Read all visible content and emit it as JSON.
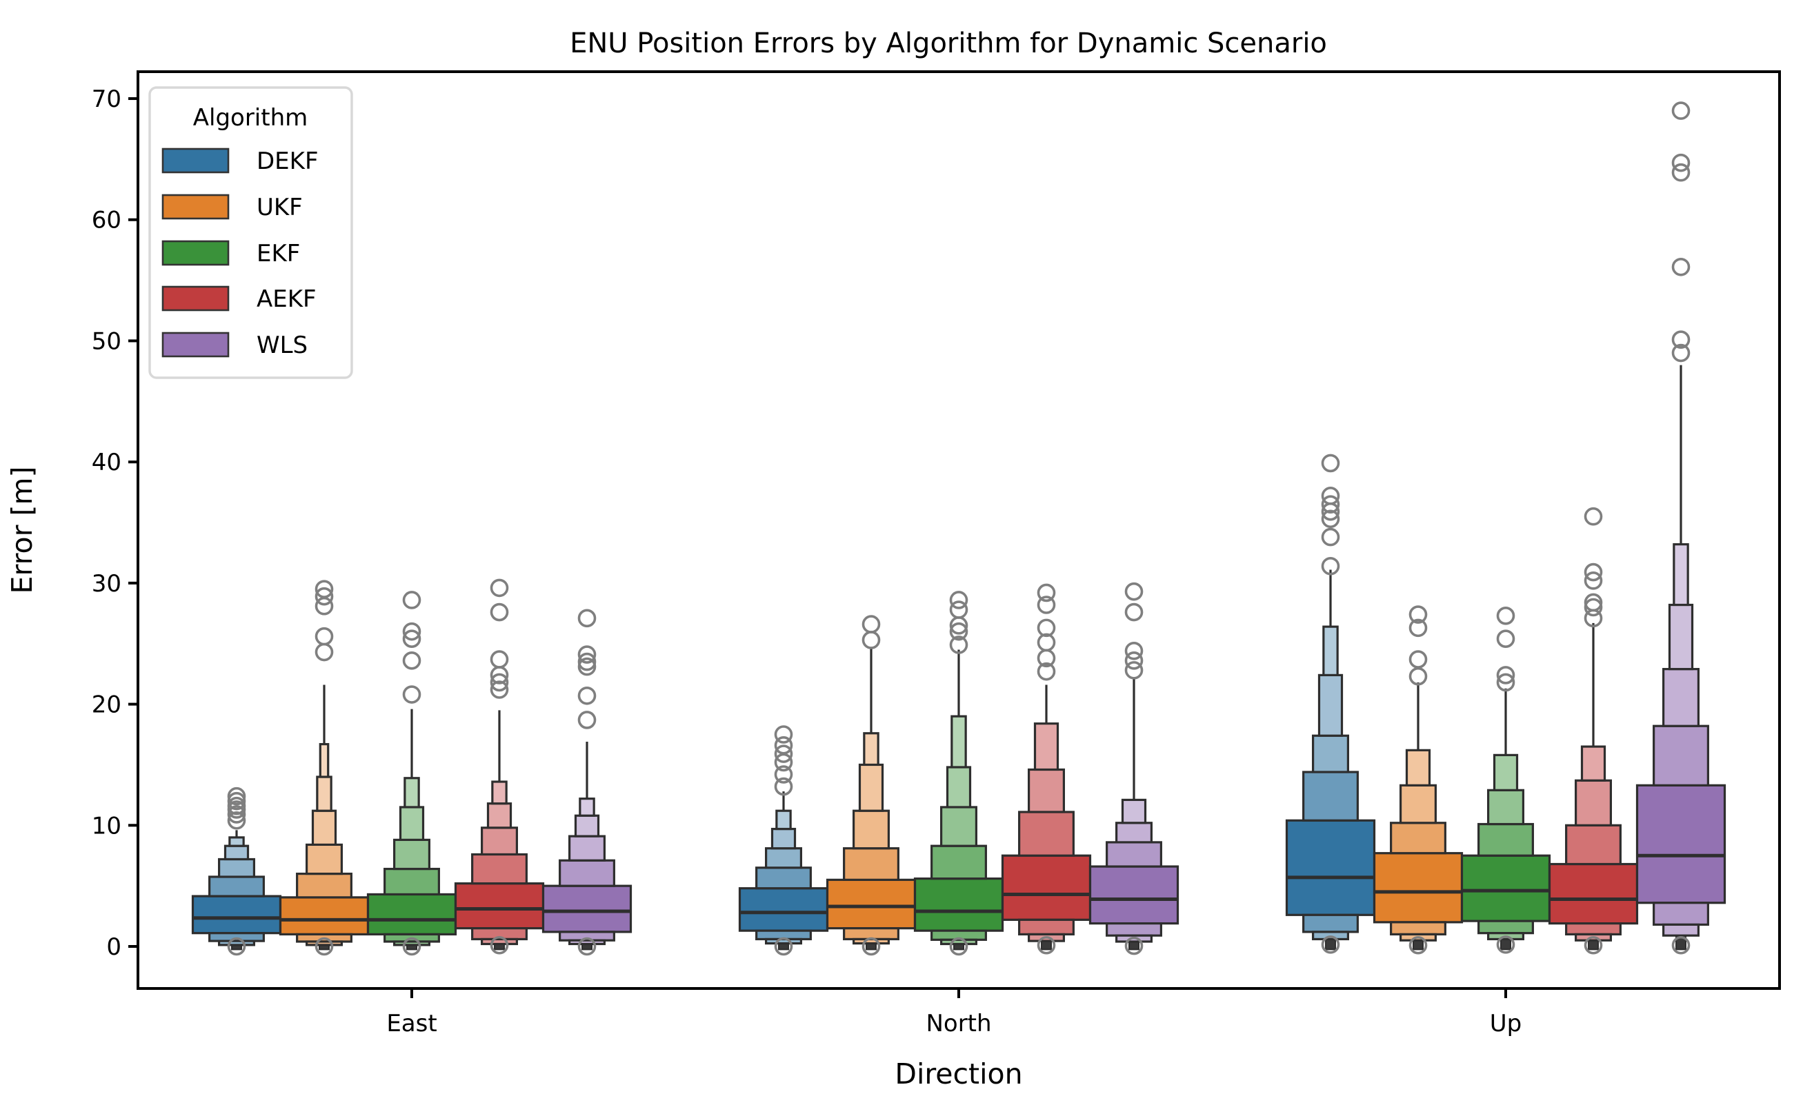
{
  "title": "ENU Position Errors by Algorithm for Dynamic Scenario",
  "legend": {
    "title": "Algorithm",
    "entries": [
      {
        "label": "DEKF",
        "color": "#3274a1"
      },
      {
        "label": "UKF",
        "color": "#e1812c"
      },
      {
        "label": "EKF",
        "color": "#3a923a"
      },
      {
        "label": "AEKF",
        "color": "#c03d3e"
      },
      {
        "label": "WLS",
        "color": "#9372b2"
      }
    ]
  },
  "colors": {
    "box_edge": "#2e2e2e",
    "outlier": "#7f7f7f",
    "spine": "#000000",
    "legend_border": "#d8d8d8",
    "stub": "#3a3a3a"
  },
  "chart_data": {
    "type": "boxen",
    "title": "ENU Position Errors by Algorithm for Dynamic Scenario",
    "xlabel": "Direction",
    "ylabel": "Error [m]",
    "categories": [
      "East",
      "North",
      "Up"
    ],
    "yticks": [
      0,
      10,
      20,
      30,
      40,
      50,
      60,
      70
    ],
    "ylim": [
      -3.5,
      72.2
    ],
    "legend_position": "upper left",
    "grid": false,
    "level_width_fractions": [
      1.0,
      0.62,
      0.4,
      0.26,
      0.16,
      0.09
    ],
    "series": [
      {
        "name": "DEKF",
        "color": "#3274a1",
        "boxens": [
          {
            "direction": "East",
            "median": 2.35,
            "boxes": [
              [
                1.1,
                4.15,
                0
              ],
              [
                4.15,
                5.75,
                1
              ],
              [
                0.45,
                1.1,
                1
              ],
              [
                5.75,
                7.2,
                2
              ],
              [
                0.12,
                0.45,
                2
              ],
              [
                7.2,
                8.3,
                3
              ],
              [
                8.3,
                9.0,
                4
              ]
            ],
            "whisker_top": 9.6,
            "outliers_top": [
              10.4,
              10.9,
              11.3,
              11.6,
              12.0,
              12.4
            ],
            "outliers_bottom": [
              0.0
            ]
          },
          {
            "direction": "North",
            "median": 2.8,
            "boxes": [
              [
                1.3,
                4.8,
                0
              ],
              [
                4.8,
                6.5,
                1
              ],
              [
                0.6,
                1.3,
                1
              ],
              [
                6.5,
                8.1,
                2
              ],
              [
                0.25,
                0.6,
                2
              ],
              [
                8.1,
                9.7,
                3
              ],
              [
                9.7,
                11.2,
                4
              ]
            ],
            "whisker_top": 12.8,
            "outliers_top": [
              13.2,
              14.2,
              15.2,
              15.9,
              16.6,
              17.5
            ],
            "outliers_bottom": [
              0.0
            ]
          },
          {
            "direction": "Up",
            "median": 5.7,
            "boxes": [
              [
                2.6,
                10.4,
                0
              ],
              [
                10.4,
                14.4,
                1
              ],
              [
                1.2,
                2.6,
                1
              ],
              [
                14.4,
                17.4,
                2
              ],
              [
                0.6,
                1.2,
                2
              ],
              [
                17.4,
                22.4,
                3
              ],
              [
                22.4,
                26.4,
                4
              ]
            ],
            "whisker_top": 31.1,
            "outliers_top": [
              31.4,
              33.8,
              35.3,
              35.9,
              36.5,
              37.2,
              39.9
            ],
            "outliers_bottom": [
              0.15
            ]
          }
        ]
      },
      {
        "name": "UKF",
        "color": "#e1812c",
        "boxens": [
          {
            "direction": "East",
            "median": 2.2,
            "boxes": [
              [
                1.0,
                4.05,
                0
              ],
              [
                4.05,
                6.0,
                1
              ],
              [
                0.4,
                1.0,
                1
              ],
              [
                6.0,
                8.4,
                2
              ],
              [
                0.12,
                0.4,
                2
              ],
              [
                8.4,
                11.2,
                3
              ],
              [
                11.2,
                14.0,
                4
              ],
              [
                14.0,
                16.7,
                5
              ]
            ],
            "whisker_top": 21.6,
            "outliers_top": [
              24.3,
              25.6,
              28.1,
              28.9,
              29.5
            ],
            "outliers_bottom": [
              0.0
            ]
          },
          {
            "direction": "North",
            "median": 3.3,
            "boxes": [
              [
                1.5,
                5.5,
                0
              ],
              [
                5.5,
                8.1,
                1
              ],
              [
                0.6,
                1.5,
                1
              ],
              [
                8.1,
                11.2,
                2
              ],
              [
                0.25,
                0.6,
                2
              ],
              [
                11.2,
                15.0,
                3
              ],
              [
                15.0,
                17.6,
                4
              ]
            ],
            "whisker_top": 24.6,
            "outliers_top": [
              25.3,
              26.6
            ],
            "outliers_bottom": [
              0.0
            ]
          },
          {
            "direction": "Up",
            "median": 4.5,
            "boxes": [
              [
                2.0,
                7.7,
                0
              ],
              [
                7.7,
                10.2,
                1
              ],
              [
                1.0,
                2.0,
                1
              ],
              [
                10.2,
                13.3,
                2
              ],
              [
                0.5,
                1.0,
                2
              ],
              [
                13.3,
                16.2,
                3
              ]
            ],
            "whisker_top": 21.8,
            "outliers_top": [
              22.3,
              23.7,
              26.3,
              27.4
            ],
            "outliers_bottom": [
              0.1
            ]
          }
        ]
      },
      {
        "name": "EKF",
        "color": "#3a923a",
        "boxens": [
          {
            "direction": "East",
            "median": 2.2,
            "boxes": [
              [
                1.0,
                4.3,
                0
              ],
              [
                4.3,
                6.4,
                1
              ],
              [
                0.4,
                1.0,
                1
              ],
              [
                6.4,
                8.8,
                2
              ],
              [
                0.12,
                0.4,
                2
              ],
              [
                8.8,
                11.5,
                3
              ],
              [
                11.5,
                13.9,
                4
              ]
            ],
            "whisker_top": 19.6,
            "outliers_top": [
              20.8,
              23.6,
              25.4,
              26.0,
              28.6
            ],
            "outliers_bottom": [
              0.0
            ]
          },
          {
            "direction": "North",
            "median": 2.9,
            "boxes": [
              [
                1.3,
                5.6,
                0
              ],
              [
                5.6,
                8.3,
                1
              ],
              [
                0.55,
                1.3,
                1
              ],
              [
                8.3,
                11.5,
                2
              ],
              [
                0.2,
                0.55,
                2
              ],
              [
                11.5,
                14.8,
                3
              ],
              [
                14.8,
                19.0,
                4
              ]
            ],
            "whisker_top": 24.5,
            "outliers_top": [
              24.9,
              26.0,
              26.5,
              27.8,
              28.6
            ],
            "outliers_bottom": [
              0.0
            ]
          },
          {
            "direction": "Up",
            "median": 4.6,
            "boxes": [
              [
                2.1,
                7.5,
                0
              ],
              [
                7.5,
                10.1,
                1
              ],
              [
                1.1,
                2.1,
                1
              ],
              [
                10.1,
                12.9,
                2
              ],
              [
                0.6,
                1.1,
                2
              ],
              [
                12.9,
                15.8,
                3
              ]
            ],
            "whisker_top": 21.3,
            "outliers_top": [
              21.8,
              22.4,
              25.4,
              27.3
            ],
            "outliers_bottom": [
              0.15
            ]
          }
        ]
      },
      {
        "name": "AEKF",
        "color": "#c03d3e",
        "boxens": [
          {
            "direction": "East",
            "median": 3.1,
            "boxes": [
              [
                1.5,
                5.2,
                0
              ],
              [
                5.2,
                7.6,
                1
              ],
              [
                0.6,
                1.5,
                1
              ],
              [
                7.6,
                9.8,
                2
              ],
              [
                0.2,
                0.6,
                2
              ],
              [
                9.8,
                11.8,
                3
              ],
              [
                11.8,
                13.6,
                4
              ]
            ],
            "whisker_top": 19.5,
            "outliers_top": [
              21.2,
              21.8,
              22.4,
              23.7,
              27.6,
              29.6
            ],
            "outliers_bottom": [
              0.1
            ]
          },
          {
            "direction": "North",
            "median": 4.3,
            "boxes": [
              [
                2.2,
                7.5,
                0
              ],
              [
                7.5,
                11.1,
                1
              ],
              [
                1.0,
                2.2,
                1
              ],
              [
                11.1,
                14.6,
                2
              ],
              [
                0.45,
                1.0,
                2
              ],
              [
                14.6,
                18.4,
                3
              ]
            ],
            "whisker_top": 21.6,
            "outliers_top": [
              22.7,
              23.8,
              25.1,
              26.3,
              28.2,
              29.2
            ],
            "outliers_bottom": [
              0.1
            ]
          },
          {
            "direction": "Up",
            "median": 3.9,
            "boxes": [
              [
                1.9,
                6.8,
                0
              ],
              [
                6.8,
                10.0,
                1
              ],
              [
                1.0,
                1.9,
                1
              ],
              [
                10.0,
                13.7,
                2
              ],
              [
                0.5,
                1.0,
                2
              ],
              [
                13.7,
                16.5,
                3
              ]
            ],
            "whisker_top": 26.7,
            "outliers_top": [
              27.1,
              28.0,
              28.4,
              30.2,
              30.9,
              35.5
            ],
            "outliers_bottom": [
              0.1
            ]
          }
        ]
      },
      {
        "name": "WLS",
        "color": "#9372b2",
        "boxens": [
          {
            "direction": "East",
            "median": 2.9,
            "boxes": [
              [
                1.2,
                5.0,
                0
              ],
              [
                5.0,
                7.1,
                1
              ],
              [
                0.5,
                1.2,
                1
              ],
              [
                7.1,
                9.1,
                2
              ],
              [
                0.2,
                0.5,
                2
              ],
              [
                9.1,
                10.8,
                3
              ],
              [
                10.8,
                12.2,
                4
              ]
            ],
            "whisker_top": 16.9,
            "outliers_top": [
              18.7,
              20.7,
              23.1,
              23.5,
              24.1,
              27.1
            ],
            "outliers_bottom": [
              0.0
            ]
          },
          {
            "direction": "North",
            "median": 3.9,
            "boxes": [
              [
                1.9,
                6.6,
                0
              ],
              [
                6.6,
                8.6,
                1
              ],
              [
                0.9,
                1.9,
                1
              ],
              [
                8.6,
                10.2,
                2
              ],
              [
                0.4,
                0.9,
                2
              ],
              [
                10.2,
                12.1,
                3
              ]
            ],
            "whisker_top": 22.2,
            "outliers_top": [
              22.8,
              23.6,
              24.4,
              27.6,
              29.3
            ],
            "outliers_bottom": [
              0.05
            ]
          },
          {
            "direction": "Up",
            "median": 7.5,
            "boxes": [
              [
                3.6,
                13.3,
                0
              ],
              [
                13.3,
                18.2,
                1
              ],
              [
                1.8,
                3.6,
                1
              ],
              [
                18.2,
                22.9,
                2
              ],
              [
                0.9,
                1.8,
                2
              ],
              [
                22.9,
                28.2,
                3
              ],
              [
                28.2,
                33.2,
                4
              ]
            ],
            "whisker_top": 48.0,
            "outliers_top": [
              49.0,
              50.1,
              56.1,
              63.9,
              64.7,
              69.0
            ],
            "outliers_bottom": [
              0.1
            ]
          }
        ]
      }
    ]
  }
}
